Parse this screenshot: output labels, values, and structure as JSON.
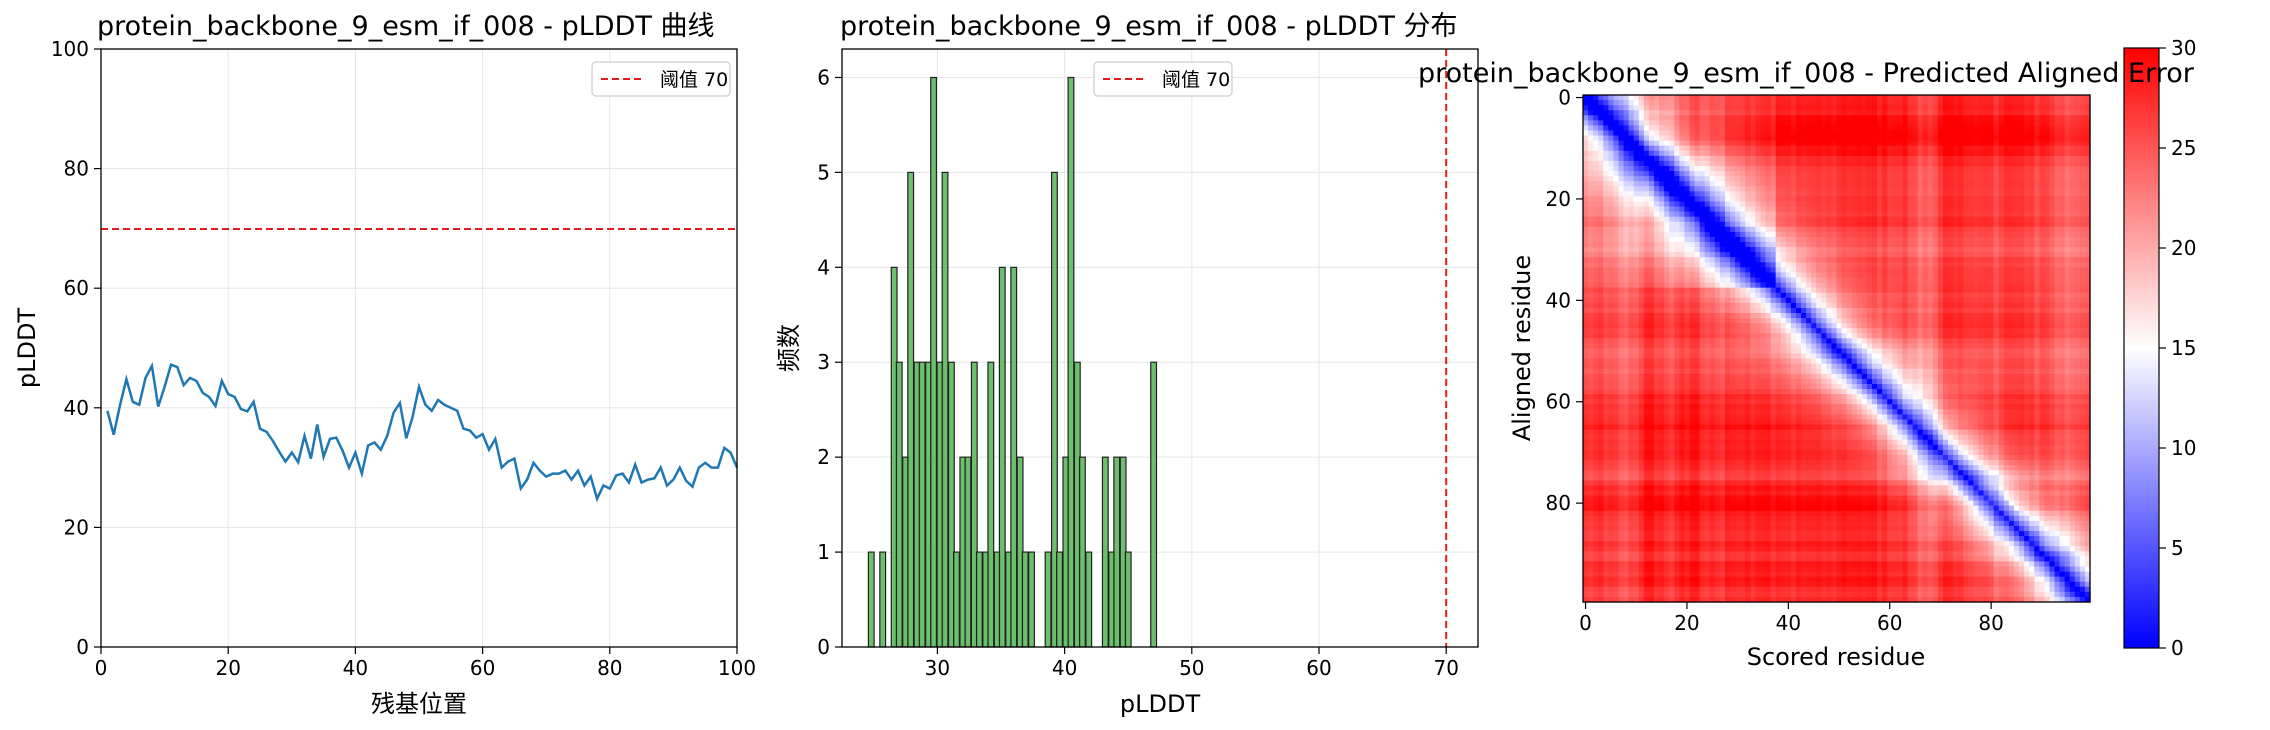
{
  "chart_data": [
    {
      "type": "line",
      "title": "protein_backbone_9_esm_if_008 - pLDDT 曲线",
      "xlabel": "残基位置",
      "ylabel": "pLDDT",
      "xlim": [
        0,
        100
      ],
      "ylim": [
        0,
        100
      ],
      "xticks": [
        "0",
        "20",
        "40",
        "60",
        "80",
        "100"
      ],
      "yticks": [
        "0",
        "20",
        "40",
        "60",
        "80",
        "100"
      ],
      "grid": true,
      "legend_position": "top-right",
      "threshold": {
        "value": 70,
        "label": "阈值 70",
        "color": "#e31a1c"
      },
      "line_color": "#1f77b4",
      "x": [
        1,
        2,
        3,
        4,
        5,
        6,
        7,
        8,
        9,
        10,
        11,
        12,
        13,
        14,
        15,
        16,
        17,
        18,
        19,
        20,
        21,
        22,
        23,
        24,
        25,
        26,
        27,
        28,
        29,
        30,
        31,
        32,
        33,
        34,
        35,
        36,
        37,
        38,
        39,
        40,
        41,
        42,
        43,
        44,
        45,
        46,
        47,
        48,
        49,
        50,
        51,
        52,
        53,
        54,
        55,
        56,
        57,
        58,
        59,
        60,
        61,
        62,
        63,
        64,
        65,
        66,
        67,
        68,
        69,
        70,
        71,
        72,
        73,
        74,
        75,
        76,
        77,
        78,
        79,
        80,
        81,
        82,
        83,
        84,
        85,
        86,
        87,
        88,
        89,
        90,
        91,
        92,
        93,
        94,
        95,
        96,
        97,
        98,
        99,
        100
      ],
      "y": [
        39.5,
        35.5,
        40.5,
        44.8,
        41.0,
        40.5,
        45.0,
        47.0,
        40.2,
        43.5,
        47.2,
        46.8,
        43.8,
        45.0,
        44.5,
        42.5,
        41.8,
        40.3,
        44.5,
        42.3,
        41.8,
        39.8,
        39.4,
        41.0,
        36.5,
        36.0,
        34.5,
        32.7,
        31.0,
        32.5,
        30.9,
        35.3,
        31.5,
        37.2,
        31.8,
        34.8,
        35.0,
        32.8,
        30.0,
        32.5,
        29.0,
        33.7,
        34.2,
        33.0,
        35.3,
        39.2,
        40.8,
        34.9,
        38.5,
        43.5,
        40.5,
        39.5,
        41.3,
        40.5,
        40.0,
        39.5,
        36.5,
        36.2,
        35.0,
        35.6,
        33.0,
        34.8,
        30.0,
        31.0,
        31.5,
        26.5,
        28.0,
        30.8,
        29.5,
        28.5,
        29.0,
        29.0,
        29.5,
        28.0,
        29.5,
        27.0,
        28.5,
        24.8,
        27.0,
        26.5,
        28.7,
        29.0,
        27.5,
        30.5,
        27.5,
        28.0,
        28.2,
        30.0,
        27.0,
        28.0,
        30.0,
        27.8,
        26.8,
        30.0,
        30.8,
        30.0,
        30.0,
        33.3,
        32.5,
        30.0
      ]
    },
    {
      "type": "bar",
      "title": "protein_backbone_9_esm_if_008 - pLDDT 分布",
      "xlabel": "pLDDT",
      "ylabel": "频数",
      "xticks": [
        "30",
        "40",
        "50",
        "60",
        "70"
      ],
      "yticks": [
        "0",
        "1",
        "2",
        "3",
        "4",
        "5",
        "6"
      ],
      "xlim": [
        22.5,
        72.5
      ],
      "ylim": [
        0,
        6.3
      ],
      "grid": true,
      "legend_position": "top-center",
      "threshold": {
        "value": 70,
        "label": "阈值 70",
        "color": "#e31a1c"
      },
      "bar_color": "#5cb85c",
      "bin_width": 0.45,
      "bins": [
        {
          "x": 24.8,
          "count": 1
        },
        {
          "x": 25.7,
          "count": 1
        },
        {
          "x": 26.6,
          "count": 4
        },
        {
          "x": 27.0,
          "count": 3
        },
        {
          "x": 27.5,
          "count": 2
        },
        {
          "x": 27.9,
          "count": 5
        },
        {
          "x": 28.4,
          "count": 3
        },
        {
          "x": 28.8,
          "count": 3
        },
        {
          "x": 29.3,
          "count": 3
        },
        {
          "x": 29.7,
          "count": 6
        },
        {
          "x": 30.2,
          "count": 3
        },
        {
          "x": 30.6,
          "count": 5
        },
        {
          "x": 31.1,
          "count": 3
        },
        {
          "x": 31.5,
          "count": 1
        },
        {
          "x": 32.0,
          "count": 2
        },
        {
          "x": 32.4,
          "count": 2
        },
        {
          "x": 32.9,
          "count": 3
        },
        {
          "x": 33.3,
          "count": 1
        },
        {
          "x": 33.8,
          "count": 1
        },
        {
          "x": 34.2,
          "count": 3
        },
        {
          "x": 34.7,
          "count": 1
        },
        {
          "x": 35.1,
          "count": 4
        },
        {
          "x": 35.6,
          "count": 1
        },
        {
          "x": 36.0,
          "count": 4
        },
        {
          "x": 36.5,
          "count": 2
        },
        {
          "x": 36.9,
          "count": 1
        },
        {
          "x": 37.4,
          "count": 1
        },
        {
          "x": 38.7,
          "count": 1
        },
        {
          "x": 39.2,
          "count": 5
        },
        {
          "x": 39.6,
          "count": 1
        },
        {
          "x": 40.1,
          "count": 2
        },
        {
          "x": 40.5,
          "count": 6
        },
        {
          "x": 41.0,
          "count": 3
        },
        {
          "x": 41.4,
          "count": 2
        },
        {
          "x": 41.9,
          "count": 1
        },
        {
          "x": 43.2,
          "count": 2
        },
        {
          "x": 43.7,
          "count": 1
        },
        {
          "x": 44.1,
          "count": 2
        },
        {
          "x": 44.6,
          "count": 2
        },
        {
          "x": 45.0,
          "count": 1
        },
        {
          "x": 47.0,
          "count": 3
        }
      ]
    },
    {
      "type": "heatmap",
      "title": "protein_backbone_9_esm_if_008 - Predicted Aligned Error",
      "xlabel": "Scored residue",
      "ylabel": "Aligned residue",
      "size": 100,
      "xticks": [
        "0",
        "20",
        "40",
        "60",
        "80"
      ],
      "yticks": [
        "0",
        "20",
        "40",
        "60",
        "80"
      ],
      "colormap": "bwr",
      "colorbar_range": [
        0,
        30
      ],
      "colorbar_ticks": [
        "0",
        "5",
        "10",
        "15",
        "20",
        "25",
        "30"
      ]
    }
  ]
}
